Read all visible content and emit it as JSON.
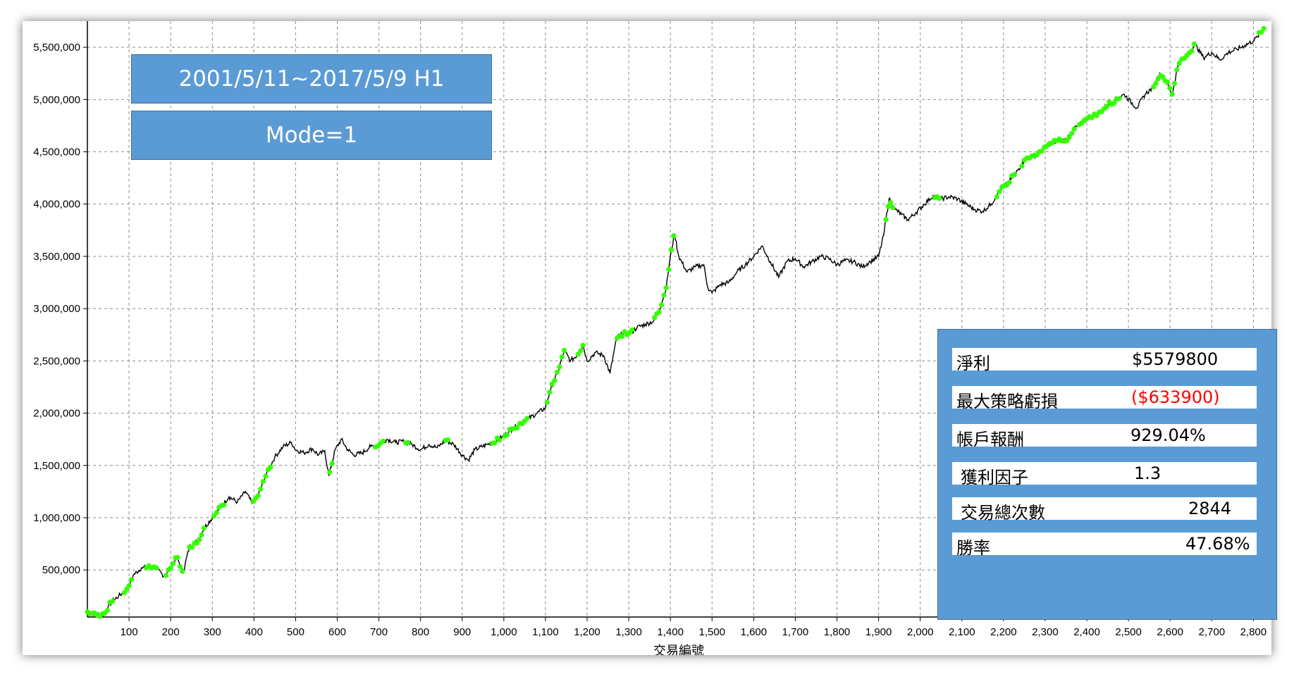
{
  "info_boxes": {
    "period": "2001/5/11~2017/5/9 H1",
    "mode": "Mode=1"
  },
  "stats": [
    {
      "label": "淨利",
      "value": "$5579800",
      "negative": false
    },
    {
      "label": "最大策略虧損",
      "value": "($633900)",
      "negative": true
    },
    {
      "label": "帳戶報酬",
      "value": "929.04%",
      "negative": false
    },
    {
      "label": "獲利因子",
      "value": "1.3",
      "negative": false
    },
    {
      "label": "交易總次數",
      "value": "2844",
      "negative": false
    },
    {
      "label": "勝率",
      "value": "47.68%",
      "negative": false
    }
  ],
  "chart_data": {
    "type": "line",
    "xlabel": "交易編號",
    "ylabel": "",
    "xlim": [
      0,
      2840
    ],
    "ylim": [
      50000,
      5750000
    ],
    "x_ticks": [
      100,
      200,
      300,
      400,
      500,
      600,
      700,
      800,
      900,
      1000,
      1100,
      1200,
      1300,
      1400,
      1500,
      1600,
      1700,
      1800,
      1900,
      2000,
      2100,
      2200,
      2300,
      2400,
      2500,
      2600,
      2700,
      2800
    ],
    "x_tick_labels": [
      "100",
      "200",
      "300",
      "400",
      "500",
      "600",
      "700",
      "800",
      "900",
      "1,000",
      "1,100",
      "1,200",
      "1,300",
      "1,400",
      "1,500",
      "1,600",
      "1,700",
      "1,800",
      "1,900",
      "2,000",
      "2,100",
      "2,200",
      "2,300",
      "2,400",
      "2,500",
      "2,600",
      "2,700",
      "2,800"
    ],
    "y_ticks": [
      500000,
      1000000,
      1500000,
      2000000,
      2500000,
      3000000,
      3500000,
      4000000,
      4500000,
      5000000,
      5500000
    ],
    "y_tick_labels": [
      "500,000",
      "1,000,000",
      "1,500,000",
      "2,000,000",
      "2,500,000",
      "3,000,000",
      "3,500,000",
      "4,000,000",
      "4,500,000",
      "5,000,000",
      "5,500,000"
    ],
    "grid": true,
    "line_color": "#000000",
    "marker_color": "#33ff00",
    "series": [
      {
        "values": [
          [
            0,
            100000
          ],
          [
            20,
            80000
          ],
          [
            40,
            70000
          ],
          [
            50,
            150000
          ],
          [
            60,
            200000
          ],
          [
            75,
            250000
          ],
          [
            85,
            280000
          ],
          [
            100,
            350000
          ],
          [
            110,
            450000
          ],
          [
            130,
            520000
          ],
          [
            160,
            530000
          ],
          [
            185,
            440000
          ],
          [
            200,
            520000
          ],
          [
            215,
            620000
          ],
          [
            230,
            480000
          ],
          [
            245,
            720000
          ],
          [
            265,
            780000
          ],
          [
            280,
            900000
          ],
          [
            300,
            1000000
          ],
          [
            320,
            1100000
          ],
          [
            340,
            1200000
          ],
          [
            360,
            1150000
          ],
          [
            380,
            1250000
          ],
          [
            395,
            1140000
          ],
          [
            410,
            1210000
          ],
          [
            430,
            1420000
          ],
          [
            450,
            1580000
          ],
          [
            470,
            1680000
          ],
          [
            490,
            1720000
          ],
          [
            500,
            1650000
          ],
          [
            520,
            1620000
          ],
          [
            540,
            1660000
          ],
          [
            555,
            1600000
          ],
          [
            570,
            1640000
          ],
          [
            580,
            1400000
          ],
          [
            595,
            1650000
          ],
          [
            610,
            1750000
          ],
          [
            625,
            1650000
          ],
          [
            640,
            1600000
          ],
          [
            660,
            1620000
          ],
          [
            680,
            1680000
          ],
          [
            700,
            1700000
          ],
          [
            720,
            1750000
          ],
          [
            740,
            1720000
          ],
          [
            760,
            1730000
          ],
          [
            780,
            1700000
          ],
          [
            800,
            1650000
          ],
          [
            820,
            1700000
          ],
          [
            840,
            1670000
          ],
          [
            860,
            1740000
          ],
          [
            880,
            1700000
          ],
          [
            900,
            1600000
          ],
          [
            915,
            1550000
          ],
          [
            930,
            1650000
          ],
          [
            960,
            1700000
          ],
          [
            980,
            1730000
          ],
          [
            1000,
            1780000
          ],
          [
            1020,
            1850000
          ],
          [
            1040,
            1900000
          ],
          [
            1060,
            1950000
          ],
          [
            1080,
            2000000
          ],
          [
            1100,
            2050000
          ],
          [
            1110,
            2200000
          ],
          [
            1130,
            2400000
          ],
          [
            1145,
            2600000
          ],
          [
            1160,
            2500000
          ],
          [
            1175,
            2550000
          ],
          [
            1190,
            2650000
          ],
          [
            1200,
            2500000
          ],
          [
            1220,
            2580000
          ],
          [
            1240,
            2550000
          ],
          [
            1255,
            2380000
          ],
          [
            1270,
            2700000
          ],
          [
            1290,
            2780000
          ],
          [
            1300,
            2750000
          ],
          [
            1320,
            2820000
          ],
          [
            1340,
            2850000
          ],
          [
            1360,
            2880000
          ],
          [
            1375,
            3000000
          ],
          [
            1390,
            3200000
          ],
          [
            1400,
            3500000
          ],
          [
            1410,
            3720000
          ],
          [
            1420,
            3500000
          ],
          [
            1440,
            3350000
          ],
          [
            1460,
            3400000
          ],
          [
            1480,
            3420000
          ],
          [
            1490,
            3200000
          ],
          [
            1500,
            3150000
          ],
          [
            1520,
            3230000
          ],
          [
            1540,
            3250000
          ],
          [
            1560,
            3350000
          ],
          [
            1580,
            3420000
          ],
          [
            1600,
            3500000
          ],
          [
            1620,
            3600000
          ],
          [
            1640,
            3450000
          ],
          [
            1660,
            3300000
          ],
          [
            1680,
            3450000
          ],
          [
            1700,
            3480000
          ],
          [
            1720,
            3400000
          ],
          [
            1740,
            3450000
          ],
          [
            1760,
            3500000
          ],
          [
            1780,
            3480000
          ],
          [
            1800,
            3420000
          ],
          [
            1820,
            3460000
          ],
          [
            1840,
            3450000
          ],
          [
            1860,
            3400000
          ],
          [
            1880,
            3450000
          ],
          [
            1900,
            3500000
          ],
          [
            1912,
            3700000
          ],
          [
            1925,
            4050000
          ],
          [
            1940,
            3950000
          ],
          [
            1955,
            3900000
          ],
          [
            1970,
            3850000
          ],
          [
            1990,
            3920000
          ],
          [
            2010,
            4000000
          ],
          [
            2030,
            4080000
          ],
          [
            2050,
            4050000
          ],
          [
            2070,
            4070000
          ],
          [
            2090,
            4050000
          ],
          [
            2110,
            4000000
          ],
          [
            2130,
            3950000
          ],
          [
            2150,
            3930000
          ],
          [
            2170,
            4000000
          ],
          [
            2190,
            4120000
          ],
          [
            2210,
            4200000
          ],
          [
            2230,
            4300000
          ],
          [
            2250,
            4420000
          ],
          [
            2270,
            4450000
          ],
          [
            2290,
            4500000
          ],
          [
            2310,
            4580000
          ],
          [
            2330,
            4600000
          ],
          [
            2350,
            4620000
          ],
          [
            2370,
            4720000
          ],
          [
            2390,
            4780000
          ],
          [
            2410,
            4840000
          ],
          [
            2430,
            4880000
          ],
          [
            2450,
            4950000
          ],
          [
            2470,
            5000000
          ],
          [
            2490,
            5050000
          ],
          [
            2505,
            4980000
          ],
          [
            2520,
            4920000
          ],
          [
            2540,
            5050000
          ],
          [
            2560,
            5120000
          ],
          [
            2575,
            5250000
          ],
          [
            2590,
            5180000
          ],
          [
            2605,
            5050000
          ],
          [
            2620,
            5350000
          ],
          [
            2640,
            5420000
          ],
          [
            2660,
            5530000
          ],
          [
            2680,
            5400000
          ],
          [
            2700,
            5450000
          ],
          [
            2720,
            5380000
          ],
          [
            2740,
            5450000
          ],
          [
            2760,
            5480000
          ],
          [
            2780,
            5520000
          ],
          [
            2800,
            5560000
          ],
          [
            2810,
            5600000
          ],
          [
            2825,
            5680000
          ]
        ],
        "markers_x_ranges": [
          [
            0,
            60
          ],
          [
            85,
            110
          ],
          [
            140,
            170
          ],
          [
            185,
            230
          ],
          [
            245,
            285
          ],
          [
            300,
            330
          ],
          [
            395,
            440
          ],
          [
            580,
            590
          ],
          [
            690,
            710
          ],
          [
            760,
            770
          ],
          [
            860,
            870
          ],
          [
            970,
            990
          ],
          [
            1000,
            1060
          ],
          [
            1100,
            1145
          ],
          [
            1175,
            1190
          ],
          [
            1270,
            1310
          ],
          [
            1360,
            1410
          ],
          [
            1915,
            1935
          ],
          [
            2030,
            2050
          ],
          [
            2180,
            2230
          ],
          [
            2240,
            2370
          ],
          [
            2380,
            2480
          ],
          [
            2560,
            2660
          ],
          [
            2810,
            2830
          ]
        ]
      }
    ]
  }
}
